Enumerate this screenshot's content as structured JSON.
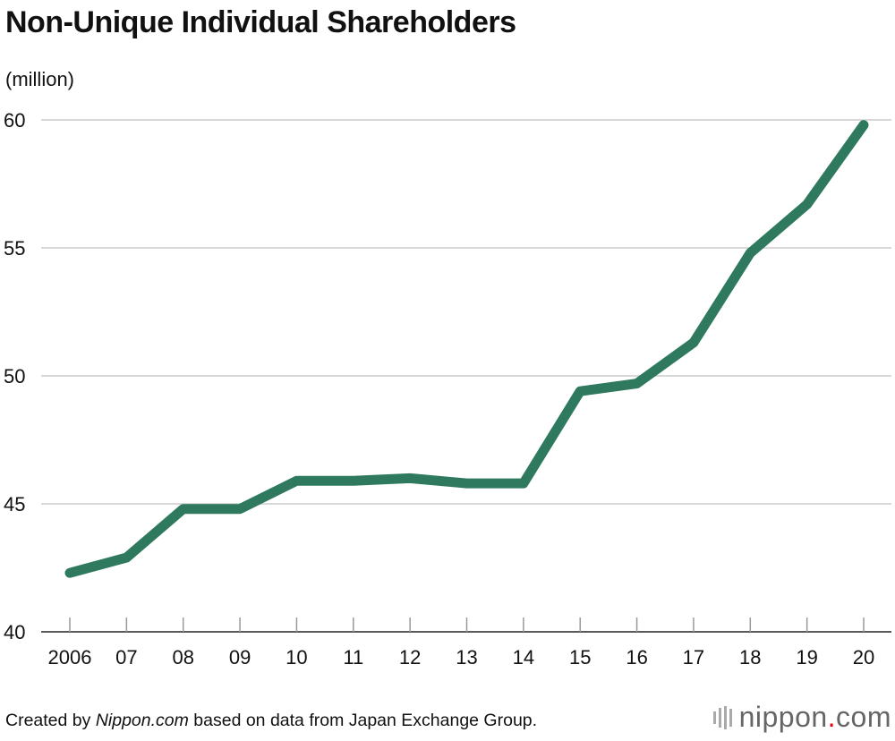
{
  "title": "Non-Unique Individual Shareholders",
  "unit_label": "(million)",
  "footer": {
    "prefix": "Created by ",
    "source_name": "Nippon.com",
    "suffix": " based on data from Japan Exchange Group."
  },
  "brand": {
    "name_part1": "nippon",
    "dot": ".",
    "name_part2": "com"
  },
  "colors": {
    "line": "#2f7a5e",
    "grid": "#cccccc",
    "brand_dot": "#e60012"
  },
  "chart_data": {
    "type": "line",
    "title": "Non-Unique Individual Shareholders",
    "ylabel": "(million)",
    "xlabel": "",
    "ylim": [
      40,
      60
    ],
    "yticks": [
      40,
      45,
      50,
      55,
      60
    ],
    "grid": true,
    "categories": [
      "2006",
      "07",
      "08",
      "09",
      "10",
      "11",
      "12",
      "13",
      "14",
      "15",
      "16",
      "17",
      "18",
      "19",
      "20"
    ],
    "series": [
      {
        "name": "Non-Unique Individual Shareholders",
        "values": [
          42.3,
          42.9,
          44.8,
          44.8,
          45.9,
          45.9,
          46.0,
          45.8,
          45.8,
          49.4,
          49.7,
          51.3,
          54.8,
          56.7,
          59.8
        ]
      }
    ]
  }
}
